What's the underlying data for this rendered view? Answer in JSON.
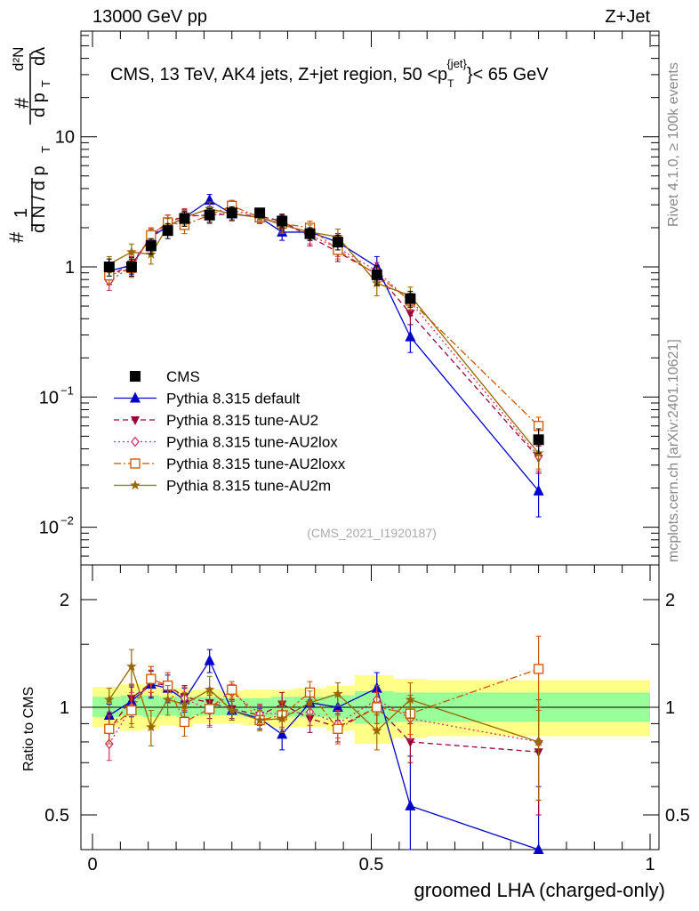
{
  "header": {
    "left": "13000 GeV pp",
    "right": "Z+Jet"
  },
  "side_labels": {
    "rivet": "Rivet 4.1.0, ≥ 100k events",
    "mcplots": "mcplots.cern.ch [arXiv:2401.10621]"
  },
  "chart_data": [
    {
      "type": "line",
      "panel": "main",
      "title": "CMS, 13 TeV, AK4 jets, Z+jet region, 50 < p_T^{jet} < 65 GeV",
      "title_parts": {
        "pre": "CMS, 13 TeV, AK4 jets, Z+jet region, 50 <p",
        "sub": "T",
        "sup": "{jet}",
        "post": "}< 65 GeV"
      },
      "ylabel": "1/N dN/dλ",
      "ylabel_text": {
        "l1": "1",
        "l2": "d N / d p",
        "l3": "d²N",
        "l4": "d p",
        "l5": "dλ",
        "sub": "T",
        "hash": "#"
      },
      "yscale": "log",
      "ylim": [
        0.005,
        80
      ],
      "xlim": [
        -0.005,
        1.0
      ],
      "yticks": [
        {
          "v": 0.01,
          "label": "10",
          "exp": "−2"
        },
        {
          "v": 0.1,
          "label": "10",
          "exp": "−1"
        },
        {
          "v": 1,
          "label": "1",
          "exp": ""
        },
        {
          "v": 10,
          "label": "10",
          "exp": ""
        }
      ],
      "watermark": "(CMS_2021_I1920187)",
      "legend_position": "bottom-left",
      "x": [
        0.03,
        0.07,
        0.105,
        0.135,
        0.165,
        0.21,
        0.25,
        0.3,
        0.34,
        0.39,
        0.44,
        0.51,
        0.57,
        0.8
      ],
      "series": [
        {
          "name": "CMS",
          "color": "#000000",
          "style": "data",
          "marker": "square",
          "values": [
            1.0,
            1.0,
            1.45,
            1.9,
            2.35,
            2.5,
            2.6,
            2.6,
            2.25,
            1.8,
            1.55,
            0.87,
            0.57,
            0.047
          ],
          "err": [
            0.15,
            0.15,
            0.2,
            0.25,
            0.3,
            0.3,
            0.3,
            0.2,
            0.25,
            0.2,
            0.2,
            0.15,
            0.08,
            0.01
          ]
        },
        {
          "name": "Pythia 8.315 default",
          "color": "#0000cc",
          "style": "solid",
          "marker": "triangle-up",
          "values": [
            0.93,
            1.03,
            1.7,
            2.05,
            2.4,
            3.25,
            2.55,
            2.4,
            1.85,
            1.85,
            1.55,
            1.0,
            0.29,
            0.019
          ],
          "err": [
            0.12,
            0.15,
            0.25,
            0.25,
            0.3,
            0.35,
            0.3,
            0.25,
            0.25,
            0.25,
            0.25,
            0.2,
            0.07,
            0.007
          ]
        },
        {
          "name": "Pythia 8.315 tune-AU2",
          "color": "#990033",
          "style": "dashed",
          "marker": "triangle-down",
          "values": [
            0.85,
            1.05,
            1.7,
            2.2,
            2.45,
            2.5,
            2.55,
            2.45,
            2.25,
            1.7,
            1.3,
            0.88,
            0.44,
            0.034
          ],
          "err": [
            0.12,
            0.15,
            0.25,
            0.3,
            0.3,
            0.3,
            0.3,
            0.25,
            0.3,
            0.25,
            0.2,
            0.15,
            0.08,
            0.008
          ]
        },
        {
          "name": "Pythia 8.315 tune-AU2lox",
          "color": "#cc3366",
          "style": "dotted",
          "marker": "diamond",
          "values": [
            0.78,
            1.0,
            1.75,
            2.2,
            2.5,
            2.45,
            2.7,
            2.5,
            2.15,
            1.75,
            1.4,
            0.93,
            0.54,
            0.035
          ],
          "err": [
            0.12,
            0.15,
            0.25,
            0.3,
            0.3,
            0.3,
            0.3,
            0.25,
            0.3,
            0.25,
            0.2,
            0.15,
            0.08,
            0.008
          ]
        },
        {
          "name": "Pythia 8.315 tune-AU2loxx",
          "color": "#cc5500",
          "style": "dashdot",
          "marker": "open-square",
          "values": [
            0.86,
            0.98,
            1.75,
            2.2,
            2.1,
            2.5,
            2.95,
            2.4,
            2.15,
            2.0,
            1.35,
            0.87,
            0.55,
            0.06
          ],
          "err": [
            0.12,
            0.15,
            0.25,
            0.3,
            0.3,
            0.3,
            0.3,
            0.25,
            0.3,
            0.25,
            0.2,
            0.15,
            0.08,
            0.01
          ]
        },
        {
          "name": "Pythia 8.315 tune-AU2m",
          "color": "#996600",
          "style": "solid",
          "marker": "star",
          "values": [
            1.05,
            1.3,
            1.25,
            2.05,
            2.4,
            2.8,
            2.55,
            2.4,
            2.1,
            1.85,
            1.7,
            0.75,
            0.6,
            0.037
          ],
          "err": [
            0.15,
            0.2,
            0.2,
            0.3,
            0.3,
            0.35,
            0.3,
            0.25,
            0.3,
            0.25,
            0.25,
            0.15,
            0.1,
            0.009
          ]
        }
      ]
    },
    {
      "type": "line",
      "panel": "ratio",
      "ylabel": "Ratio to CMS",
      "xlabel": "groomed LHA (charged-only)",
      "yscale": "log2",
      "ylim": [
        0.42,
        2.4
      ],
      "xlim": [
        -0.005,
        1.0
      ],
      "yticks": [
        {
          "v": 0.5,
          "label": "0.5"
        },
        {
          "v": 1,
          "label": "1"
        },
        {
          "v": 2,
          "label": "2"
        }
      ],
      "xticks": [
        {
          "v": 0,
          "label": "0"
        },
        {
          "v": 0.5,
          "label": "0.5"
        },
        {
          "v": 1,
          "label": "1"
        }
      ],
      "bins": [
        0.0,
        0.05,
        0.09,
        0.12,
        0.15,
        0.18,
        0.23,
        0.27,
        0.32,
        0.36,
        0.42,
        0.47,
        0.54,
        0.6,
        1.0
      ],
      "band_inner": [
        [
          0.94,
          1.07
        ],
        [
          0.95,
          1.08
        ],
        [
          0.94,
          1.08
        ],
        [
          0.95,
          1.07
        ],
        [
          0.94,
          1.07
        ],
        [
          0.95,
          1.07
        ],
        [
          0.95,
          1.06
        ],
        [
          0.94,
          1.06
        ],
        [
          0.94,
          1.07
        ],
        [
          0.94,
          1.07
        ],
        [
          0.93,
          1.08
        ],
        [
          0.9,
          1.11
        ],
        [
          0.91,
          1.1
        ],
        [
          0.91,
          1.1
        ]
      ],
      "band_outer": [
        [
          0.88,
          1.14
        ],
        [
          0.86,
          1.16
        ],
        [
          0.87,
          1.15
        ],
        [
          0.89,
          1.13
        ],
        [
          0.88,
          1.13
        ],
        [
          0.9,
          1.12
        ],
        [
          0.9,
          1.11
        ],
        [
          0.89,
          1.12
        ],
        [
          0.88,
          1.12
        ],
        [
          0.88,
          1.13
        ],
        [
          0.86,
          1.15
        ],
        [
          0.79,
          1.23
        ],
        [
          0.82,
          1.2
        ],
        [
          0.83,
          1.19
        ]
      ],
      "x": [
        0.03,
        0.07,
        0.105,
        0.135,
        0.165,
        0.21,
        0.25,
        0.3,
        0.34,
        0.39,
        0.44,
        0.51,
        0.57,
        0.8
      ],
      "series": [
        {
          "name": "Pythia 8.315 default",
          "color": "#0000cc",
          "marker": "triangle-up",
          "style": "solid",
          "values": [
            0.95,
            1.04,
            1.16,
            1.13,
            1.05,
            1.35,
            0.98,
            0.93,
            0.84,
            1.03,
            1.0,
            1.13,
            0.53,
            0.4
          ],
          "err": [
            0.07,
            0.1,
            0.1,
            0.1,
            0.08,
            0.1,
            0.06,
            0.06,
            0.08,
            0.08,
            0.08,
            0.12,
            0.2,
            0.2
          ]
        },
        {
          "name": "Pythia 8.315 tune-AU2",
          "color": "#990033",
          "marker": "triangle-down",
          "style": "dashed",
          "values": [
            0.86,
            1.06,
            1.17,
            1.15,
            1.07,
            1.03,
            0.99,
            0.95,
            1.02,
            0.93,
            0.88,
            1.0,
            0.8,
            0.75
          ],
          "err": [
            0.08,
            0.1,
            0.1,
            0.1,
            0.08,
            0.1,
            0.06,
            0.06,
            0.08,
            0.08,
            0.08,
            0.1,
            0.1,
            0.25
          ]
        },
        {
          "name": "Pythia 8.315 tune-AU2lox",
          "color": "#cc3366",
          "marker": "diamond",
          "style": "dotted",
          "values": [
            0.79,
            1.0,
            1.2,
            1.15,
            1.06,
            0.98,
            1.1,
            0.96,
            0.96,
            0.97,
            0.9,
            1.05,
            0.93,
            0.8
          ],
          "err": [
            0.08,
            0.1,
            0.1,
            0.1,
            0.08,
            0.1,
            0.06,
            0.06,
            0.08,
            0.08,
            0.08,
            0.1,
            0.12,
            0.25
          ]
        },
        {
          "name": "Pythia 8.315 tune-AU2loxx",
          "color": "#cc5500",
          "marker": "open-square",
          "style": "dashdot",
          "values": [
            0.87,
            0.98,
            1.2,
            1.15,
            0.91,
            0.99,
            1.12,
            0.92,
            0.95,
            1.1,
            0.87,
            1.0,
            0.96,
            1.28
          ],
          "err": [
            0.08,
            0.1,
            0.1,
            0.1,
            0.08,
            0.1,
            0.06,
            0.06,
            0.08,
            0.08,
            0.08,
            0.1,
            0.12,
            0.3
          ]
        },
        {
          "name": "Pythia 8.315 tune-AU2m",
          "color": "#996600",
          "marker": "star",
          "style": "solid",
          "values": [
            1.05,
            1.3,
            0.88,
            1.05,
            1.02,
            1.12,
            0.98,
            0.92,
            0.93,
            1.03,
            1.09,
            0.86,
            1.05,
            0.8
          ],
          "err": [
            0.08,
            0.15,
            0.1,
            0.1,
            0.08,
            0.1,
            0.06,
            0.06,
            0.08,
            0.08,
            0.08,
            0.1,
            0.12,
            0.25
          ]
        }
      ]
    }
  ]
}
